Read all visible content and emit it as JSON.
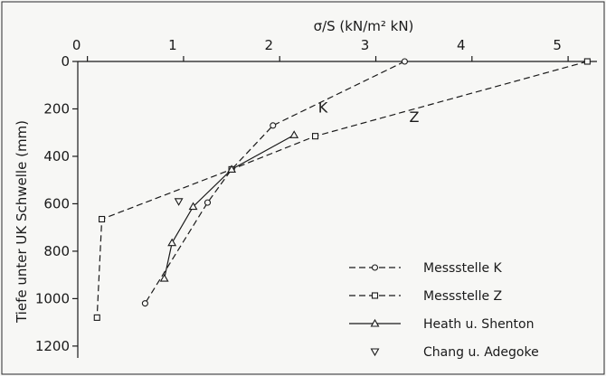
{
  "chart_data": {
    "type": "line",
    "xlabel": "σ/S  (kN/m² kN)",
    "ylabel": "Tiefe unter UK Schwelle (mm)",
    "x_axis_position": "top",
    "y_inverted": true,
    "xlim": [
      -0.1,
      5.3
    ],
    "ylim": [
      0,
      1250
    ],
    "x_ticks": [
      0,
      1,
      2,
      3,
      4,
      5
    ],
    "x_tick_labels": [
      "0",
      "1",
      "2",
      "3",
      "4",
      "5"
    ],
    "y_ticks": [
      0,
      200,
      400,
      600,
      800,
      1000,
      1200
    ],
    "y_tick_labels": [
      "0",
      "200",
      "400",
      "600",
      "800",
      "1000",
      "1200"
    ],
    "grid": false,
    "legend_position": "bottom-right",
    "series": [
      {
        "name": "Messstelle  K",
        "line": "dashed",
        "marker": "circle",
        "points": [
          [
            3.3,
            0
          ],
          [
            1.93,
            270
          ],
          [
            1.5,
            455
          ],
          [
            1.25,
            595
          ],
          [
            0.6,
            1020
          ]
        ]
      },
      {
        "name": "Messstelle  Z",
        "line": "dashed",
        "marker": "square",
        "points": [
          [
            5.2,
            0
          ],
          [
            2.37,
            315
          ],
          [
            1.5,
            455
          ],
          [
            0.15,
            665
          ],
          [
            0.1,
            1080
          ]
        ]
      },
      {
        "name": "Heath  u.  Shenton",
        "line": "solid",
        "marker": "triangle-up",
        "points": [
          [
            2.15,
            310
          ],
          [
            1.5,
            455
          ],
          [
            1.1,
            612
          ],
          [
            0.88,
            765
          ],
          [
            0.8,
            915
          ]
        ]
      },
      {
        "name": "Chang  u.  Adegoke",
        "line": "none",
        "marker": "triangle-down",
        "points": [
          [
            0.95,
            590
          ]
        ]
      }
    ],
    "annotations": [
      {
        "text": "K",
        "x": 2.45,
        "y": 215
      },
      {
        "text": "Z",
        "x": 3.4,
        "y": 255
      }
    ]
  }
}
